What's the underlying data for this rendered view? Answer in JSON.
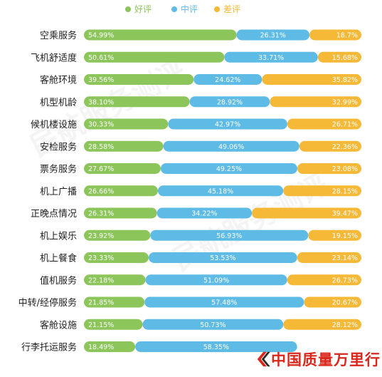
{
  "chart_data": {
    "type": "bar",
    "stacked": true,
    "orientation": "horizontal",
    "percent_stacked": true,
    "title": "",
    "xlabel": "",
    "ylabel": "",
    "legend_position": "top",
    "categories": [
      "空乘服务",
      "飞机舒适度",
      "客舱环境",
      "机型机龄",
      "候机楼设施",
      "安检服务",
      "票务服务",
      "机上广播",
      "正晚点情况",
      "机上娱乐",
      "机上餐食",
      "值机服务",
      "中转/经停服务",
      "客舱设施",
      "行李托运服务"
    ],
    "series": [
      {
        "name": "好评",
        "color": "#8cc65a",
        "values": [
          54.99,
          50.61,
          39.56,
          38.1,
          30.33,
          28.58,
          27.67,
          26.66,
          26.31,
          23.92,
          23.33,
          22.18,
          21.85,
          21.15,
          18.49
        ]
      },
      {
        "name": "中评",
        "color": "#5ebbe6",
        "values": [
          26.31,
          33.71,
          24.62,
          28.92,
          42.97,
          49.06,
          49.25,
          45.18,
          34.22,
          56.93,
          53.53,
          51.09,
          57.48,
          50.73,
          58.35
        ]
      },
      {
        "name": "差评",
        "color": "#f6b937",
        "values": [
          18.7,
          15.68,
          35.82,
          32.99,
          26.71,
          22.36,
          23.08,
          28.15,
          39.47,
          19.15,
          23.14,
          26.73,
          20.67,
          28.12,
          null
        ]
      }
    ],
    "value_labels": [
      [
        "54.99%",
        "26.31%",
        "18.7%"
      ],
      [
        "50.61%",
        "33.71%",
        "15.68%"
      ],
      [
        "39.56%",
        "24.62%",
        "35.82%"
      ],
      [
        "38.10%",
        "28.92%",
        "32.99%"
      ],
      [
        "30.33%",
        "42.97%",
        "26.71%"
      ],
      [
        "28.58%",
        "49.06%",
        "22.36%"
      ],
      [
        "27.67%",
        "49.25%",
        "23.08%"
      ],
      [
        "26.66%",
        "45.18%",
        "28.15%"
      ],
      [
        "26.31%",
        "34.22%",
        "39.47%"
      ],
      [
        "23.92%",
        "56.93%",
        "19.15%"
      ],
      [
        "23.33%",
        "53.53%",
        "23.14%"
      ],
      [
        "22.18%",
        "51.09%",
        "26.73%"
      ],
      [
        "21.85%",
        "57.48%",
        "20.67%"
      ],
      [
        "21.15%",
        "50.73%",
        "28.12%"
      ],
      [
        "18.49%",
        "58.35%",
        ""
      ]
    ]
  },
  "logo": {
    "text": "中国质量万里行"
  },
  "watermark": {
    "text": "民航服务测评"
  }
}
